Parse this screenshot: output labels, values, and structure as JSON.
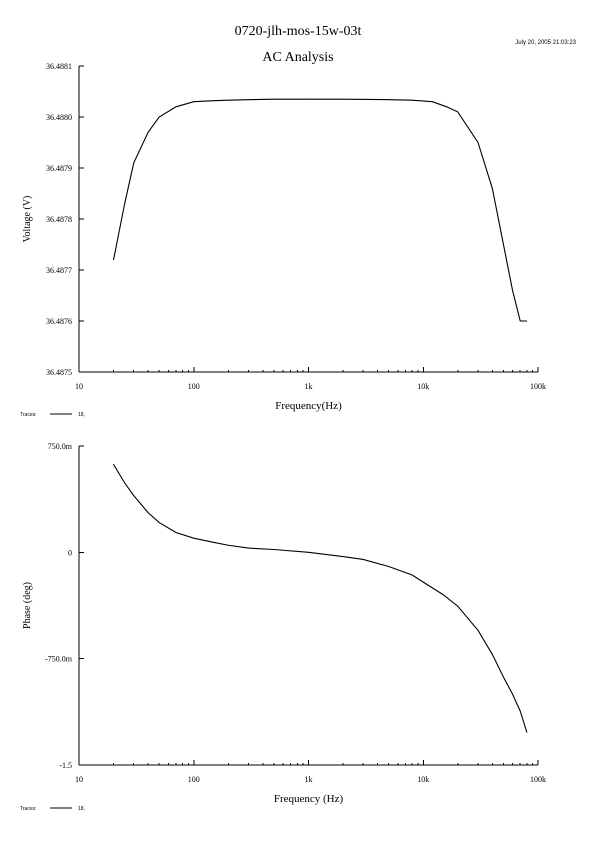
{
  "header": {
    "title": "0720-jlh-mos-15w-03t",
    "timestamp": "July 20, 2005 21:03:23"
  },
  "chart_data": [
    {
      "type": "line",
      "title": "AC Analysis",
      "xlabel": "Frequency(Hz)",
      "ylabel": "Voltage (V)",
      "xscale": "log",
      "xlim": [
        10,
        100000
      ],
      "ylim": [
        36.4875,
        36.4881
      ],
      "xticks": [
        "10",
        "100",
        "1k",
        "10k",
        "100k"
      ],
      "yticks": [
        "36.4875",
        "36.4876",
        "36.4877",
        "36.4878",
        "36.4879",
        "36.4880",
        "36.4881"
      ],
      "legend": {
        "label": "Traces:",
        "entry": "18,"
      },
      "series": [
        {
          "x": [
            20,
            25,
            30,
            40,
            50,
            70,
            100,
            150,
            200,
            300,
            500,
            1000,
            2000,
            5000,
            8000,
            12000,
            16000,
            20000,
            30000,
            40000,
            50000,
            60000,
            70000,
            80000
          ],
          "y": [
            36.48772,
            36.48783,
            36.48791,
            36.48797,
            36.488,
            36.48802,
            36.48803,
            36.488032,
            36.488033,
            36.488034,
            36.488035,
            36.488035,
            36.488035,
            36.488034,
            36.488033,
            36.48803,
            36.48802,
            36.48801,
            36.48795,
            36.48786,
            36.48775,
            36.48766,
            36.4876,
            36.4876
          ]
        }
      ]
    },
    {
      "type": "line",
      "xlabel": "Frequency (Hz)",
      "ylabel": "Phase (deg)",
      "xscale": "log",
      "xlim": [
        10,
        100000
      ],
      "ylim": [
        -1.5,
        0.75
      ],
      "xticks": [
        "10",
        "100",
        "1k",
        "10k",
        "100k"
      ],
      "yticks": [
        "750.0m",
        "0",
        "-750.0m",
        "-1.5"
      ],
      "legend": {
        "label": "Traces:",
        "entry": "18,"
      },
      "series": [
        {
          "x": [
            20,
            25,
            30,
            40,
            50,
            70,
            100,
            150,
            200,
            300,
            500,
            1000,
            2000,
            3000,
            5000,
            8000,
            10000,
            15000,
            20000,
            30000,
            40000,
            50000,
            60000,
            70000,
            80000
          ],
          "y": [
            0.62,
            0.49,
            0.4,
            0.28,
            0.21,
            0.14,
            0.1,
            0.07,
            0.05,
            0.03,
            0.02,
            0.0,
            -0.03,
            -0.05,
            -0.1,
            -0.16,
            -0.21,
            -0.3,
            -0.38,
            -0.55,
            -0.72,
            -0.88,
            -1.0,
            -1.12,
            -1.27
          ]
        }
      ]
    }
  ]
}
